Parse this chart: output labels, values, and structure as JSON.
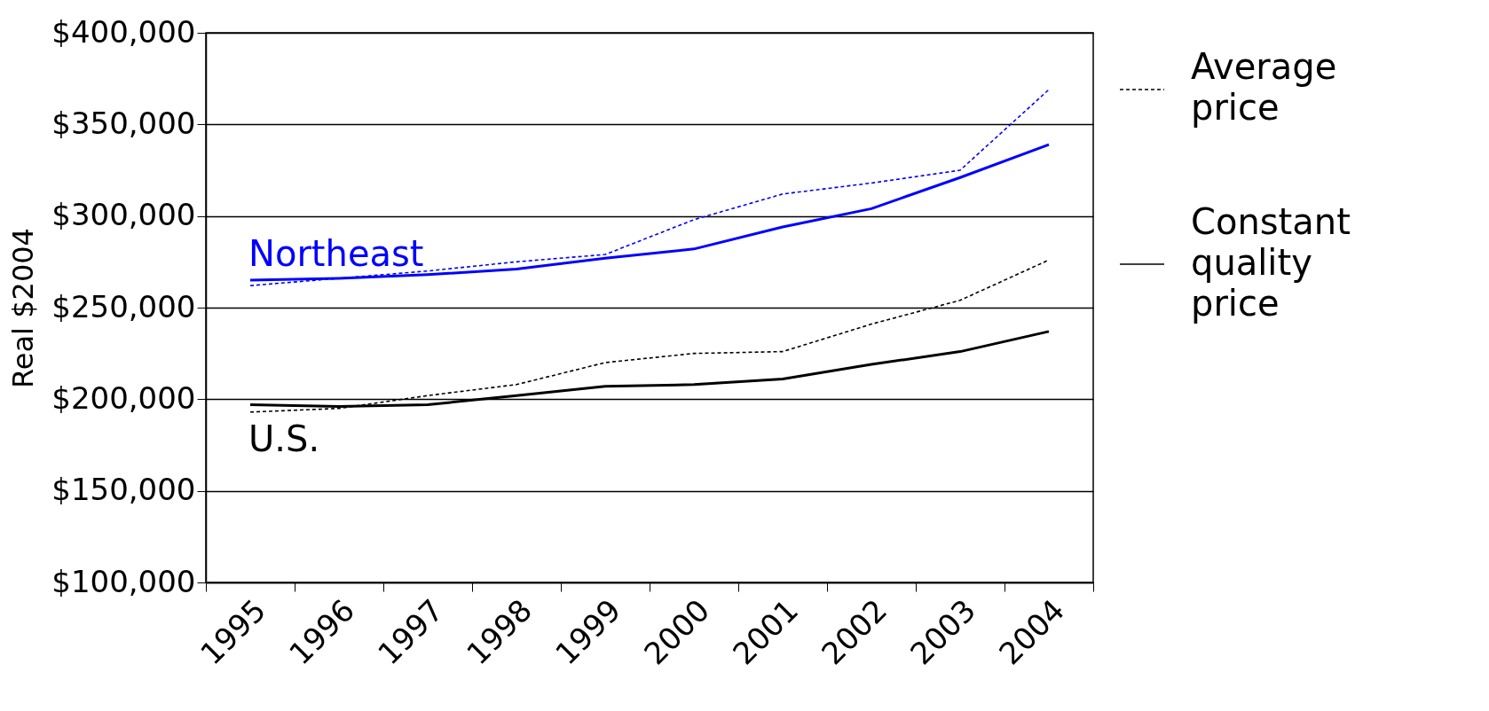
{
  "chart_data": {
    "type": "line",
    "ylabel": "Real $2004",
    "categories": [
      "1995",
      "1996",
      "1997",
      "1998",
      "1999",
      "2000",
      "2001",
      "2002",
      "2003",
      "2004"
    ],
    "series": [
      {
        "color": "#0000ff",
        "line_style": "dashed",
        "values": [
          262000,
          266000,
          270000,
          275000,
          279000,
          298000,
          312000,
          318000,
          325000,
          369000
        ]
      },
      {
        "color": "#0000ff",
        "line_style": "solid",
        "values": [
          265000,
          266000,
          268000,
          271000,
          277000,
          282000,
          294000,
          304000,
          321000,
          339000
        ]
      },
      {
        "color": "#000000",
        "line_style": "dashed",
        "values": [
          193000,
          195000,
          202000,
          208000,
          220000,
          225000,
          226000,
          241000,
          254000,
          276000
        ]
      },
      {
        "color": "#000000",
        "line_style": "solid",
        "values": [
          197000,
          196000,
          197000,
          202000,
          207000,
          208000,
          211000,
          219000,
          226000,
          237000
        ]
      }
    ],
    "ylim": [
      100000,
      400000
    ],
    "yticks": [
      {
        "value": 100000,
        "label": "$100,000"
      },
      {
        "value": 150000,
        "label": "$150,000"
      },
      {
        "value": 200000,
        "label": "$200,000"
      },
      {
        "value": 250000,
        "label": "$250,000"
      },
      {
        "value": 300000,
        "label": "$300,000"
      },
      {
        "value": 350000,
        "label": "$350,000"
      },
      {
        "value": 400000,
        "label": "$400,000"
      }
    ],
    "grid": "y",
    "annotations": [
      "Northeast",
      "U.S.",
      "Average price",
      "Constant quality price"
    ]
  }
}
